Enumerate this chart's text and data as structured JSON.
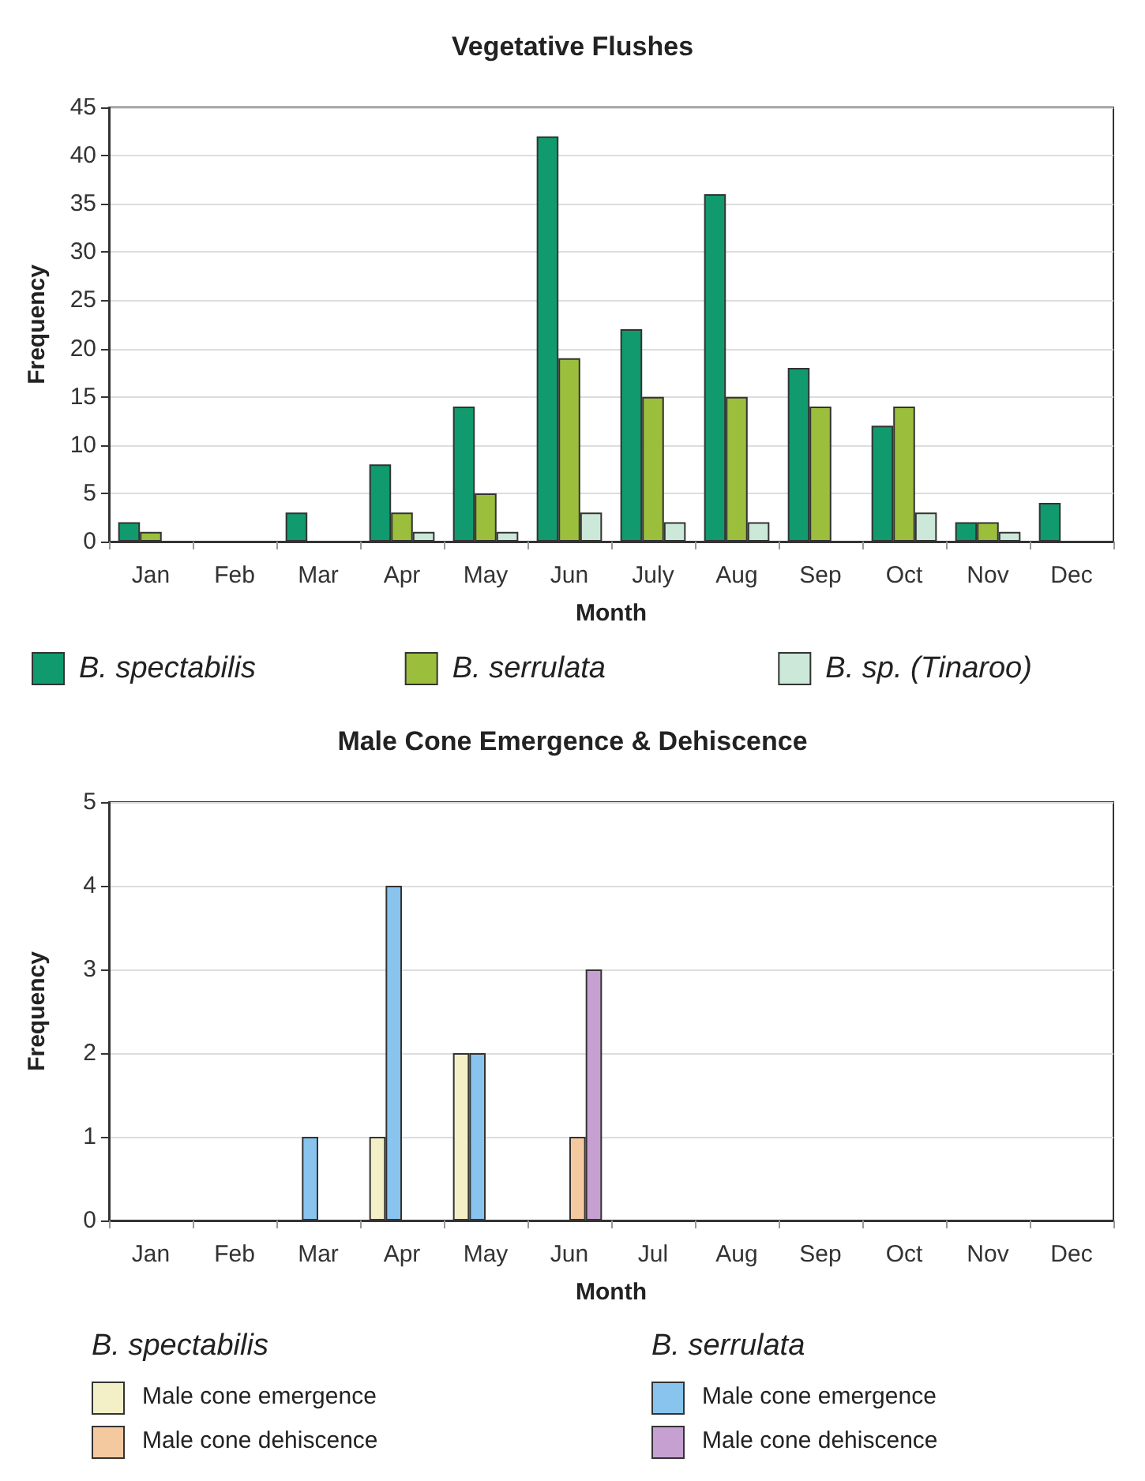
{
  "chart_data": [
    {
      "type": "bar",
      "title": "Vegetative Flushes",
      "xlabel": "Month",
      "ylabel": "Frequency",
      "categories": [
        "Jan",
        "Feb",
        "Mar",
        "Apr",
        "May",
        "Jun",
        "July",
        "Aug",
        "Sep",
        "Oct",
        "Nov",
        "Dec"
      ],
      "series": [
        {
          "name": "B. spectabilis",
          "color": "#109a6e",
          "values": [
            2,
            0,
            3,
            8,
            14,
            42,
            22,
            36,
            18,
            12,
            2,
            4
          ]
        },
        {
          "name": "B. serrulata",
          "color": "#9bbf3c",
          "values": [
            1,
            0,
            0,
            3,
            5,
            19,
            15,
            15,
            14,
            14,
            2,
            0
          ]
        },
        {
          "name": "B. sp. (Tinaroo)",
          "color": "#cce8d8",
          "values": [
            0,
            0,
            0,
            1,
            1,
            3,
            2,
            2,
            0,
            3,
            1,
            0
          ]
        }
      ],
      "ylim": [
        0,
        45
      ],
      "yticks": [
        0,
        5,
        10,
        15,
        20,
        25,
        30,
        35,
        40,
        45
      ],
      "grid": "y",
      "legend": "bottom"
    },
    {
      "type": "bar",
      "title": "Male Cone Emergence & Dehiscence",
      "xlabel": "Month",
      "ylabel": "Frequency",
      "categories": [
        "Jan",
        "Feb",
        "Mar",
        "Apr",
        "May",
        "Jun",
        "Jul",
        "Aug",
        "Sep",
        "Oct",
        "Nov",
        "Dec"
      ],
      "series": [
        {
          "name": "Male cone emergence",
          "color": "#f3f0c8",
          "values": [
            0,
            0,
            0,
            1,
            2,
            0,
            0,
            0,
            0,
            0,
            0,
            0
          ]
        },
        {
          "name": "Male cone emergence",
          "color": "#88c4ee",
          "values": [
            0,
            0,
            1,
            4,
            2,
            0,
            0,
            0,
            0,
            0,
            0,
            0
          ]
        },
        {
          "name": "Male cone dehiscence",
          "color": "#f5c9a0",
          "values": [
            0,
            0,
            0,
            0,
            0,
            1,
            0,
            0,
            0,
            0,
            0,
            0
          ]
        },
        {
          "name": "Male cone dehiscence",
          "color": "#c7a0d2",
          "values": [
            0,
            0,
            0,
            0,
            0,
            3,
            0,
            0,
            0,
            0,
            0,
            0
          ]
        }
      ],
      "annotations": [
        "B. spectabilis",
        "B. serrulata"
      ],
      "ylim": [
        0,
        5
      ],
      "yticks": [
        0,
        1,
        2,
        3,
        4,
        5
      ],
      "grid": "y",
      "legend": "bottom"
    }
  ]
}
